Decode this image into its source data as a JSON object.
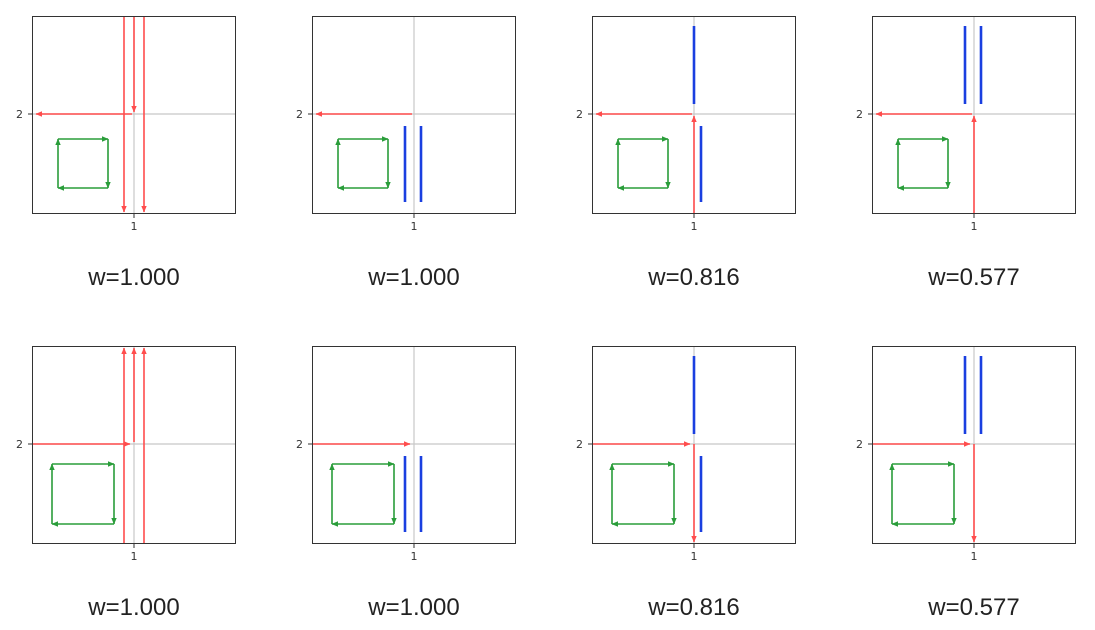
{
  "figure": {
    "tick_x_label": "1",
    "tick_y_label": "2",
    "colors": {
      "arrow": "#ff4d4d",
      "loop": "#2a9d3a",
      "bar": "#1a3fe0",
      "grid": "#c8c8c8",
      "frame": "#333333"
    },
    "panels": [
      {
        "caption": "w=1.000",
        "kind": "arrows_vertical_down"
      },
      {
        "caption": "w=1.000",
        "kind": "two_bars_low"
      },
      {
        "caption": "w=0.816",
        "kind": "bar_top_bar_right_arrow_up"
      },
      {
        "caption": "w=0.577",
        "kind": "two_bars_top_arrow_up"
      },
      {
        "caption": "w=1.000",
        "kind": "arrows_vertical_up"
      },
      {
        "caption": "w=1.000",
        "kind": "two_bars_low"
      },
      {
        "caption": "w=0.816",
        "kind": "bar_top_bar_right_arrow_down"
      },
      {
        "caption": "w=0.577",
        "kind": "two_bars_top_arrow_down"
      }
    ]
  }
}
